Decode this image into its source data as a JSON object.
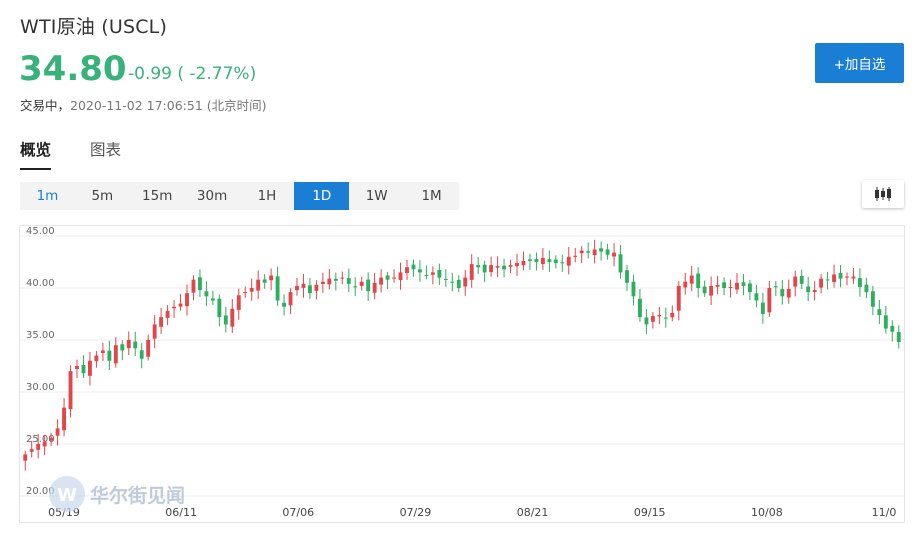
{
  "header": {
    "title": "WTI原油 (USCL)",
    "price": "34.80",
    "change": "-0.99 ( -2.77%)",
    "status_label": "交易中，",
    "timestamp": "2020-11-02 17:06:51 (北京时间)"
  },
  "actions": {
    "add_watchlist": "+加自选"
  },
  "tabs": [
    {
      "label": "概览",
      "active": true
    },
    {
      "label": "图表",
      "active": false
    }
  ],
  "periods": [
    "1m",
    "5m",
    "15m",
    "30m",
    "1H",
    "1D",
    "1W",
    "1M"
  ],
  "selected_period": "1D",
  "chart_type_icon": "candlestick-icon",
  "colors": {
    "up": "#e0464a",
    "down": "#2fae5f",
    "accent": "#1a7fd4",
    "price": "#37b27a"
  },
  "watermark": "华尔街见闻",
  "chart_data": {
    "type": "candlestick",
    "ylim": [
      20,
      45
    ],
    "y_ticks": [
      "45.00",
      "40.00",
      "35.00",
      "30.00",
      "25.00",
      "20.00"
    ],
    "x_ticks": [
      "05/19",
      "06/11",
      "07/06",
      "07/29",
      "08/21",
      "09/15",
      "10/08",
      "11/0"
    ],
    "close": [
      24.0,
      24.5,
      25.0,
      25.2,
      25.6,
      26.5,
      28.5,
      32.0,
      32.5,
      31.8,
      33.0,
      33.5,
      34.0,
      33.0,
      34.5,
      34.0,
      35.0,
      34.2,
      33.2,
      35.0,
      36.5,
      37.2,
      37.8,
      38.2,
      38.5,
      39.5,
      40.8,
      39.8,
      39.2,
      38.8,
      37.2,
      36.5,
      38.0,
      39.3,
      39.6,
      40.0,
      40.8,
      40.5,
      41.2,
      38.8,
      38.2,
      39.6,
      40.2,
      40.4,
      39.5,
      40.3,
      40.6,
      40.9,
      40.7,
      41.0,
      40.4,
      40.1,
      40.6,
      39.7,
      40.5,
      41.0,
      40.8,
      41.0,
      41.5,
      42.0,
      41.8,
      41.5,
      41.2,
      41.5,
      41.0,
      40.8,
      40.6,
      40.0,
      41.0,
      42.3,
      42.0,
      41.5,
      42.2,
      42.1,
      41.8,
      42.2,
      42.4,
      42.6,
      42.6,
      42.5,
      42.9,
      42.5,
      42.4,
      42.4,
      43.0,
      43.1,
      43.6,
      43.4,
      43.7,
      43.5,
      43.2,
      43.4,
      41.5,
      40.5,
      39.2,
      37.2,
      36.5,
      37.3,
      37.4,
      37.1,
      37.6,
      40.2,
      40.6,
      41.2,
      40.0,
      39.5,
      40.2,
      40.3,
      40.0,
      40.1,
      40.5,
      40.2,
      39.6,
      38.8,
      37.5,
      40.0,
      40.1,
      39.2,
      39.9,
      41.1,
      40.4,
      39.6,
      39.8,
      40.9,
      40.8,
      41.3,
      40.9,
      41.1,
      41.1,
      40.1,
      39.6,
      38.2,
      37.4,
      36.1,
      35.8,
      34.8
    ]
  }
}
